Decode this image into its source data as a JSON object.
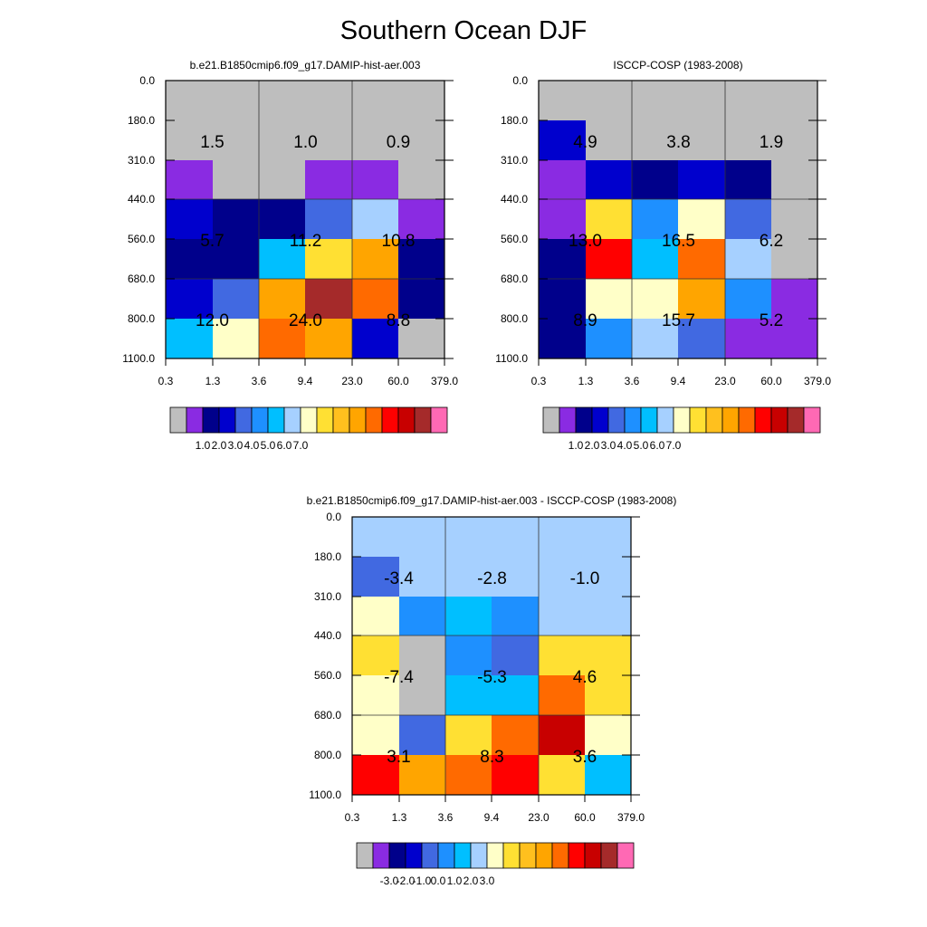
{
  "title": "Southern Ocean DJF",
  "chart_data": [
    {
      "type": "heatmap",
      "title": "b.e21.B1850cmip6.f09_g17.DAMIP-hist-aer.003",
      "x_ticks": [
        "0.3",
        "1.3",
        "3.6",
        "9.4",
        "23.0",
        "60.0",
        "379.0"
      ],
      "y_ticks": [
        "0.0",
        "180.0",
        "310.0",
        "440.0",
        "560.0",
        "680.0",
        "800.0",
        "1100.0"
      ],
      "block_sums": [
        [
          "1.5",
          "1.0",
          "0.9"
        ],
        [
          "5.7",
          "11.2",
          "10.8"
        ],
        [
          "12.0",
          "24.0",
          "8.8"
        ]
      ],
      "cell_bins": [
        [
          0,
          0,
          0,
          0,
          0,
          0
        ],
        [
          0,
          0,
          0,
          0,
          0,
          0
        ],
        [
          1,
          0,
          0,
          1,
          1,
          0
        ],
        [
          3,
          2,
          2,
          4,
          7,
          1
        ],
        [
          2,
          2,
          6,
          9,
          11,
          2
        ],
        [
          3,
          4,
          11,
          15,
          12,
          2
        ],
        [
          6,
          8,
          12,
          11,
          3,
          0
        ]
      ],
      "colorbar_labels": [
        "1.0",
        "2.0",
        "3.0",
        "4.0",
        "5.0",
        "6.0",
        "7.0"
      ]
    },
    {
      "type": "heatmap",
      "title": "ISCCP-COSP (1983-2008)",
      "x_ticks": [
        "0.3",
        "1.3",
        "3.6",
        "9.4",
        "23.0",
        "60.0",
        "379.0"
      ],
      "y_ticks": [
        "0.0",
        "180.0",
        "310.0",
        "440.0",
        "560.0",
        "680.0",
        "800.0",
        "1100.0"
      ],
      "block_sums": [
        [
          "4.9",
          "3.8",
          "1.9"
        ],
        [
          "13.0",
          "16.5",
          "6.2"
        ],
        [
          "8.9",
          "15.7",
          "5.2"
        ]
      ],
      "cell_bins": [
        [
          0,
          0,
          0,
          0,
          0,
          0
        ],
        [
          3,
          0,
          0,
          0,
          0,
          0
        ],
        [
          1,
          3,
          2,
          3,
          2,
          0
        ],
        [
          1,
          9,
          5,
          8,
          4,
          0
        ],
        [
          2,
          13,
          6,
          12,
          7,
          0
        ],
        [
          2,
          8,
          8,
          11,
          5,
          1
        ],
        [
          2,
          5,
          7,
          4,
          1,
          1
        ]
      ],
      "colorbar_labels": [
        "1.0",
        "2.0",
        "3.0",
        "4.0",
        "5.0",
        "6.0",
        "7.0"
      ]
    },
    {
      "type": "heatmap",
      "title": "b.e21.B1850cmip6.f09_g17.DAMIP-hist-aer.003 - ISCCP-COSP (1983-2008)",
      "x_ticks": [
        "0.3",
        "1.3",
        "3.6",
        "9.4",
        "23.0",
        "60.0",
        "379.0"
      ],
      "y_ticks": [
        "0.0",
        "180.0",
        "310.0",
        "440.0",
        "560.0",
        "680.0",
        "800.0",
        "1100.0"
      ],
      "block_sums": [
        [
          "-3.4",
          "-2.8",
          "-1.0"
        ],
        [
          "-7.4",
          "-5.3",
          "4.6"
        ],
        [
          "3.1",
          "8.3",
          "3.6"
        ]
      ],
      "cell_bins": [
        [
          7,
          7,
          7,
          7,
          7,
          7
        ],
        [
          4,
          7,
          7,
          7,
          7,
          7
        ],
        [
          8,
          5,
          6,
          5,
          7,
          7
        ],
        [
          9,
          0,
          5,
          4,
          9,
          9
        ],
        [
          8,
          0,
          6,
          6,
          12,
          9
        ],
        [
          8,
          4,
          9,
          12,
          14,
          8
        ],
        [
          13,
          11,
          12,
          13,
          9,
          6
        ]
      ],
      "colorbar_labels": [
        "-3.0",
        "-2.0",
        "-1.0",
        "0.0",
        "1.0",
        "2.0",
        "3.0"
      ]
    }
  ],
  "palette": [
    "#bebebe",
    "#8a2be2",
    "#00008b",
    "#0000cd",
    "#4169e1",
    "#1e90ff",
    "#00bfff",
    "#a6d0ff",
    "#ffffc8",
    "#ffe033",
    "#ffc01e",
    "#ffa500",
    "#ff6a00",
    "#ff0000",
    "#c80000",
    "#a52a2a",
    "#ff69b4"
  ],
  "colorbar_label_bin_edges": [
    2,
    3,
    4,
    5,
    6,
    7,
    8
  ]
}
